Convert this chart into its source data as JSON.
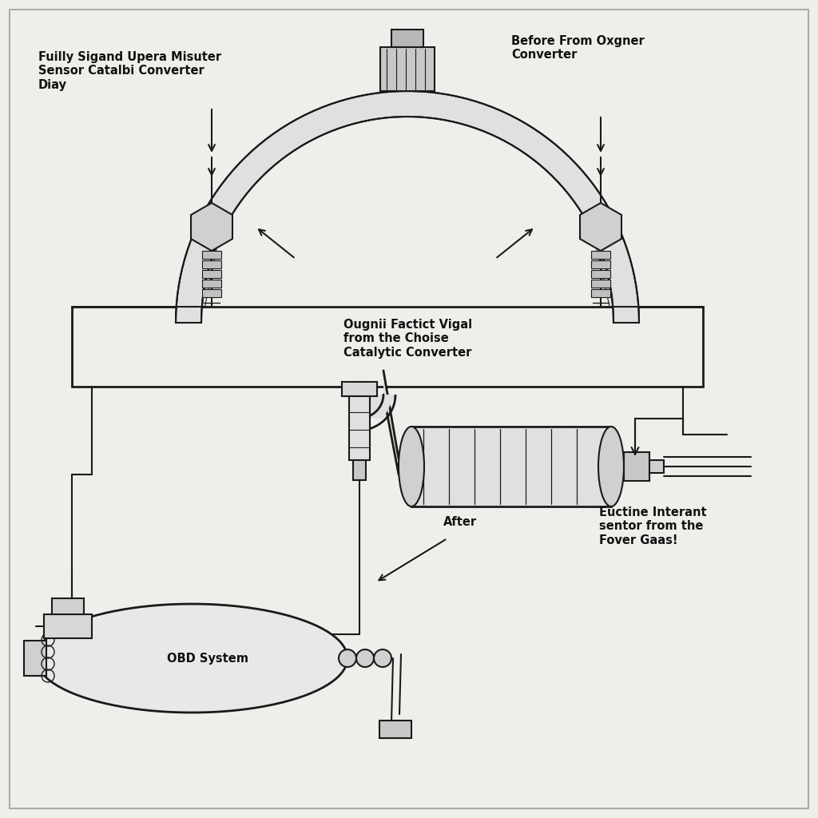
{
  "bg_color": "#f0eeea",
  "line_color": "#1a1a1a",
  "label_left_top": "Fuilly Sigand Upera Misuter\nSensor Catalbi Converter\nDiay",
  "label_right_top": "Before From Oxgner\nConverter",
  "label_middle": "Ougnii Factict Vigal\nfrom the Choise\nCatalytic Converter",
  "label_after": "After",
  "label_obd": "OBD System",
  "label_bottom_right": "Euctine Interant\nsentor from the\nFover Gaas!",
  "text_color": "#111111",
  "font_size_labels": 10.5,
  "font_size_small": 9.5
}
